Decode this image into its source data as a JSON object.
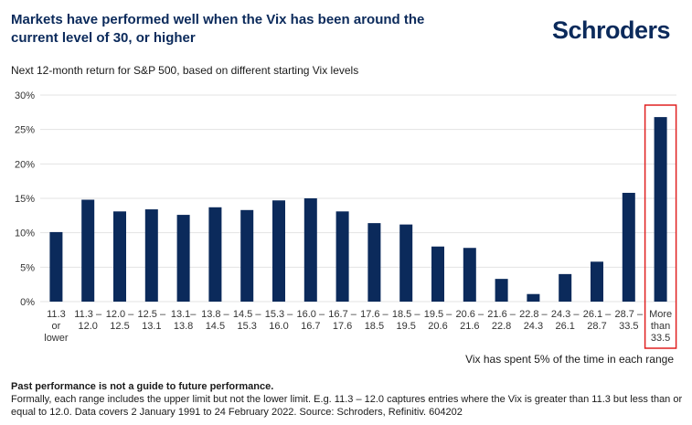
{
  "header": {
    "title": "Markets have performed well when the Vix has been around the current level of 30, or higher",
    "logo": "Schroders",
    "subtitle": "Next 12-month return for S&P 500, based on different starting Vix levels"
  },
  "chart_data": {
    "type": "bar",
    "title": "Next 12-month return for S&P 500, based on different starting Vix levels",
    "xlabel": "",
    "ylabel": "",
    "ylim": [
      0,
      30
    ],
    "yticks": [
      "0%",
      "5%",
      "10%",
      "15%",
      "20%",
      "25%",
      "30%"
    ],
    "categories": [
      [
        "11.3",
        "or",
        "lower"
      ],
      [
        "11.3 –",
        "12.0"
      ],
      [
        "12.0 –",
        "12.5"
      ],
      [
        "12.5 –",
        "13.1"
      ],
      [
        "13.1–",
        "13.8"
      ],
      [
        "13.8 –",
        "14.5"
      ],
      [
        "14.5 –",
        "15.3"
      ],
      [
        "15.3 –",
        "16.0"
      ],
      [
        "16.0 –",
        "16.7"
      ],
      [
        "16.7 –",
        "17.6"
      ],
      [
        "17.6 –",
        "18.5"
      ],
      [
        "18.5 –",
        "19.5"
      ],
      [
        "19.5 –",
        "20.6"
      ],
      [
        "20.6 –",
        "21.6"
      ],
      [
        "21.6 –",
        "22.8"
      ],
      [
        "22.8 –",
        "24.3"
      ],
      [
        "24.3 –",
        "26.1"
      ],
      [
        "26.1 –",
        "28.7"
      ],
      [
        "28.7 –",
        "33.5"
      ],
      [
        "More",
        "than",
        "33.5"
      ]
    ],
    "values": [
      10.1,
      14.8,
      13.1,
      13.4,
      12.6,
      13.7,
      13.3,
      14.7,
      15.0,
      13.1,
      11.4,
      11.2,
      8.0,
      7.8,
      3.3,
      1.1,
      4.0,
      5.8,
      15.8,
      26.8
    ],
    "grid": true,
    "bar_color": "#0b2a5b",
    "highlight_color": "#e02020",
    "highlighted_category": "More than 33.5",
    "annotation": "Vix has spent 5% of the time in each range"
  },
  "footer": {
    "bold": "Past performance is not a guide to future performance.",
    "text": "Formally, each range includes the upper limit but not the lower limit. E.g. 11.3 – 12.0 captures entries where the Vix is greater than 11.3 but less than or equal to 12.0. Data covers 2 January 1991 to 24 February 2022. Source: Schroders, Refinitiv. 604202"
  }
}
